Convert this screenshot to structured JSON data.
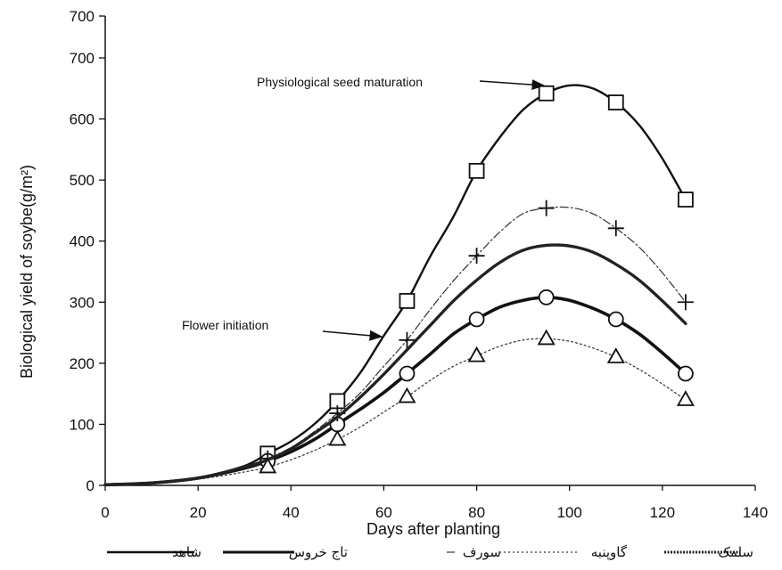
{
  "chart_data": {
    "type": "line",
    "title": "",
    "xlabel": "Days after planting",
    "ylabel": "Biological yield of soybean (g/m2)",
    "ylabel_display": "Biological yield of soybe(g/m²)",
    "xlim": [
      0,
      140
    ],
    "ylim": [
      0,
      700
    ],
    "xticks": [
      0,
      20,
      40,
      60,
      80,
      100,
      120,
      140
    ],
    "yticks": [
      0,
      100,
      200,
      300,
      400,
      500,
      600,
      700
    ],
    "extra_top_tick": "700",
    "grid": false,
    "legend_position": "bottom",
    "series": [
      {
        "name": "شاهد",
        "marker": "square",
        "line_style": "solid",
        "color": "#111111",
        "points": [
          [
            35,
            52
          ],
          [
            50,
            138
          ],
          [
            65,
            302
          ],
          [
            80,
            515
          ],
          [
            95,
            642
          ],
          [
            110,
            627
          ],
          [
            125,
            468
          ]
        ],
        "curve": [
          [
            0,
            1
          ],
          [
            10,
            4
          ],
          [
            20,
            12
          ],
          [
            30,
            32
          ],
          [
            35,
            52
          ],
          [
            40,
            72
          ],
          [
            45,
            100
          ],
          [
            50,
            138
          ],
          [
            55,
            185
          ],
          [
            60,
            245
          ],
          [
            65,
            302
          ],
          [
            70,
            375
          ],
          [
            75,
            440
          ],
          [
            80,
            515
          ],
          [
            85,
            570
          ],
          [
            90,
            615
          ],
          [
            95,
            642
          ],
          [
            100,
            655
          ],
          [
            105,
            650
          ],
          [
            110,
            627
          ],
          [
            115,
            590
          ],
          [
            120,
            535
          ],
          [
            125,
            468
          ]
        ]
      },
      {
        "name": "تاج خروس",
        "marker": "circle",
        "line_style": "thick",
        "color": "#111111",
        "points": [
          [
            35,
            40
          ],
          [
            50,
            100
          ],
          [
            65,
            183
          ],
          [
            80,
            272
          ],
          [
            95,
            308
          ],
          [
            110,
            272
          ],
          [
            125,
            183
          ]
        ],
        "curve": [
          [
            0,
            1
          ],
          [
            10,
            4
          ],
          [
            20,
            12
          ],
          [
            30,
            28
          ],
          [
            35,
            40
          ],
          [
            40,
            55
          ],
          [
            45,
            75
          ],
          [
            50,
            100
          ],
          [
            55,
            125
          ],
          [
            60,
            152
          ],
          [
            65,
            183
          ],
          [
            70,
            215
          ],
          [
            75,
            248
          ],
          [
            80,
            272
          ],
          [
            85,
            292
          ],
          [
            90,
            303
          ],
          [
            95,
            308
          ],
          [
            100,
            303
          ],
          [
            105,
            290
          ],
          [
            110,
            272
          ],
          [
            115,
            248
          ],
          [
            120,
            217
          ],
          [
            125,
            183
          ]
        ]
      },
      {
        "name": "سورف",
        "marker": "plus",
        "line_style": "dash-dot",
        "color": "#333333",
        "points": [
          [
            35,
            44
          ],
          [
            50,
            118
          ],
          [
            65,
            238
          ],
          [
            80,
            376
          ],
          [
            95,
            454
          ],
          [
            110,
            421
          ],
          [
            125,
            300
          ]
        ],
        "curve": [
          [
            0,
            1
          ],
          [
            10,
            4
          ],
          [
            20,
            12
          ],
          [
            30,
            30
          ],
          [
            35,
            44
          ],
          [
            40,
            62
          ],
          [
            45,
            88
          ],
          [
            50,
            118
          ],
          [
            55,
            152
          ],
          [
            60,
            195
          ],
          [
            65,
            238
          ],
          [
            70,
            288
          ],
          [
            75,
            335
          ],
          [
            80,
            376
          ],
          [
            85,
            415
          ],
          [
            90,
            445
          ],
          [
            95,
            454
          ],
          [
            100,
            455
          ],
          [
            105,
            445
          ],
          [
            110,
            421
          ],
          [
            115,
            390
          ],
          [
            120,
            348
          ],
          [
            125,
            300
          ]
        ]
      },
      {
        "name": "گاوپنبه",
        "marker": "triangle",
        "line_style": "dotted",
        "color": "#333333",
        "points": [
          [
            35,
            30
          ],
          [
            50,
            75
          ],
          [
            65,
            145
          ],
          [
            80,
            212
          ],
          [
            95,
            240
          ],
          [
            110,
            210
          ],
          [
            125,
            140
          ]
        ],
        "curve": [
          [
            0,
            1
          ],
          [
            10,
            3
          ],
          [
            20,
            10
          ],
          [
            30,
            22
          ],
          [
            35,
            30
          ],
          [
            40,
            42
          ],
          [
            45,
            57
          ],
          [
            50,
            75
          ],
          [
            55,
            96
          ],
          [
            60,
            120
          ],
          [
            65,
            145
          ],
          [
            70,
            172
          ],
          [
            75,
            195
          ],
          [
            80,
            212
          ],
          [
            85,
            228
          ],
          [
            90,
            238
          ],
          [
            95,
            240
          ],
          [
            100,
            236
          ],
          [
            105,
            225
          ],
          [
            110,
            210
          ],
          [
            115,
            190
          ],
          [
            120,
            166
          ],
          [
            125,
            140
          ]
        ]
      },
      {
        "name": "سلمک",
        "marker": "none",
        "line_style": "dense-dashed",
        "color": "#222222",
        "points": [],
        "curve": [
          [
            0,
            1
          ],
          [
            10,
            4
          ],
          [
            20,
            12
          ],
          [
            30,
            30
          ],
          [
            35,
            42
          ],
          [
            40,
            60
          ],
          [
            45,
            85
          ],
          [
            50,
            112
          ],
          [
            55,
            145
          ],
          [
            60,
            182
          ],
          [
            65,
            222
          ],
          [
            70,
            262
          ],
          [
            75,
            302
          ],
          [
            80,
            336
          ],
          [
            85,
            365
          ],
          [
            90,
            385
          ],
          [
            95,
            393
          ],
          [
            100,
            392
          ],
          [
            105,
            382
          ],
          [
            110,
            362
          ],
          [
            115,
            336
          ],
          [
            120,
            302
          ],
          [
            125,
            265
          ]
        ]
      }
    ],
    "annotations": [
      {
        "text": "Physiological seed maturation",
        "arrow_to": [
          97,
          655
        ]
      },
      {
        "text": "Flower initiation",
        "arrow_to": [
          60,
          245
        ]
      }
    ]
  }
}
